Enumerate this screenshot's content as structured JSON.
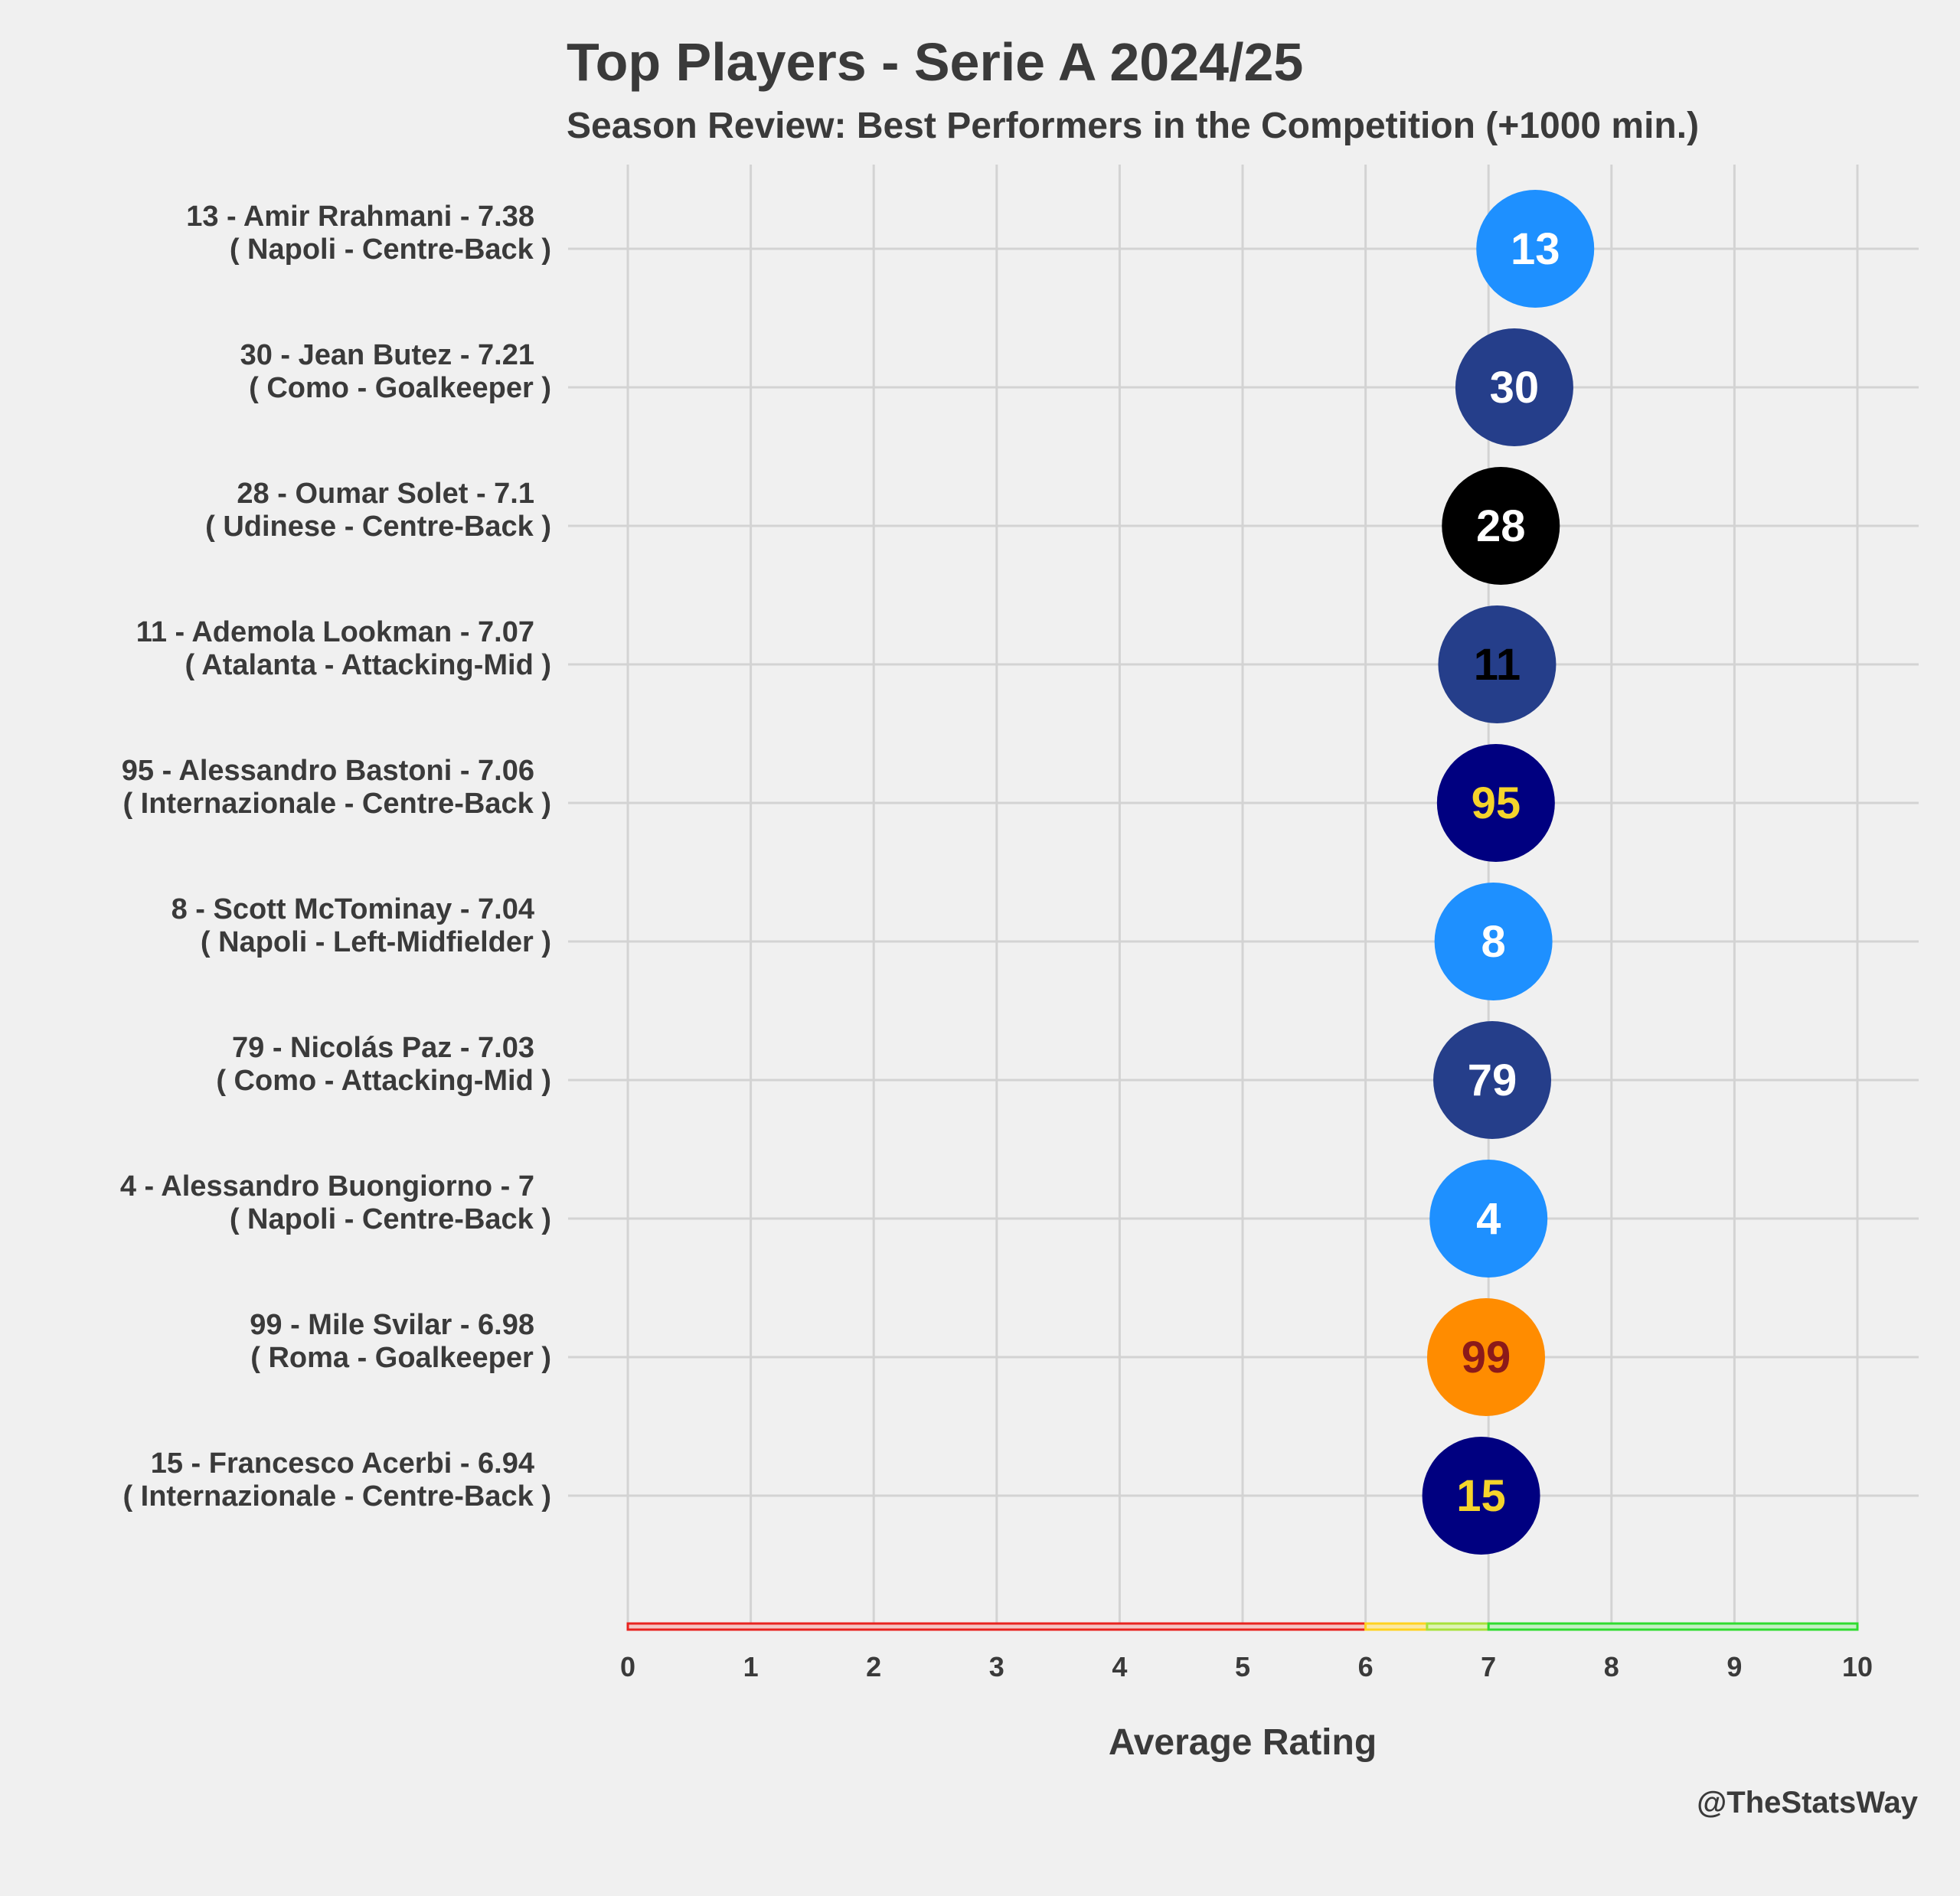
{
  "chart_data": {
    "type": "scatter",
    "title": "Top Players - Serie A 2024/25",
    "subtitle": "Season Review: Best Performers in the Competition (+1000 min.)",
    "xlabel": "Average Rating",
    "ylabel": "",
    "xlim": [
      0,
      10
    ],
    "x_ticks": [
      "0",
      "1",
      "2",
      "3",
      "4",
      "5",
      "6",
      "7",
      "8",
      "9",
      "10"
    ],
    "grid": true,
    "credit": "@TheStatsWay",
    "rating_bands": [
      {
        "from": 0,
        "to": 6,
        "stroke": "#e8231f",
        "fill": "#f4c6c4"
      },
      {
        "from": 6,
        "to": 6.5,
        "stroke": "#ffd21f",
        "fill": "#fbe8a4"
      },
      {
        "from": 6.5,
        "to": 7,
        "stroke": "#a8e23a",
        "fill": "#dff3b5"
      },
      {
        "from": 7,
        "to": 10,
        "stroke": "#2fdc2f",
        "fill": "#c4f0c4"
      }
    ],
    "players": [
      {
        "number": "13",
        "label": "13 - Amir Rrahmani - 7.38",
        "sublabel": "( Napoli - Centre-Back )",
        "rating": 7.38,
        "color": "#1e90ff",
        "text_color": "#ffffff"
      },
      {
        "number": "30",
        "label": "30 - Jean Butez - 7.21",
        "sublabel": "( Como - Goalkeeper )",
        "rating": 7.21,
        "color": "#253e8a",
        "text_color": "#ffffff"
      },
      {
        "number": "28",
        "label": "28 - Oumar Solet - 7.1",
        "sublabel": "( Udinese - Centre-Back )",
        "rating": 7.1,
        "color": "#000000",
        "text_color": "#ffffff"
      },
      {
        "number": "11",
        "label": "11 - Ademola Lookman - 7.07",
        "sublabel": "( Atalanta - Attacking-Mid )",
        "rating": 7.07,
        "color": "#253e8a",
        "text_color": "#000000"
      },
      {
        "number": "95",
        "label": "95 - Alessandro Bastoni - 7.06",
        "sublabel": "( Internazionale - Centre-Back )",
        "rating": 7.06,
        "color": "#000080",
        "text_color": "#f5d42b"
      },
      {
        "number": "8",
        "label": "8 - Scott McTominay - 7.04",
        "sublabel": "( Napoli - Left-Midfielder )",
        "rating": 7.04,
        "color": "#1e90ff",
        "text_color": "#ffffff"
      },
      {
        "number": "79",
        "label": "79 - Nicolás Paz - 7.03",
        "sublabel": "( Como - Attacking-Mid )",
        "rating": 7.03,
        "color": "#253e8a",
        "text_color": "#ffffff"
      },
      {
        "number": "4",
        "label": "4 - Alessandro Buongiorno - 7",
        "sublabel": "( Napoli - Centre-Back )",
        "rating": 7.0,
        "color": "#1e90ff",
        "text_color": "#ffffff"
      },
      {
        "number": "99",
        "label": "99 - Mile Svilar - 6.98",
        "sublabel": "( Roma - Goalkeeper )",
        "rating": 6.98,
        "color": "#ff8c00",
        "text_color": "#8b1a1a"
      },
      {
        "number": "15",
        "label": "15 - Francesco Acerbi - 6.94",
        "sublabel": "( Internazionale - Centre-Back )",
        "rating": 6.94,
        "color": "#000080",
        "text_color": "#f5d42b"
      }
    ]
  }
}
